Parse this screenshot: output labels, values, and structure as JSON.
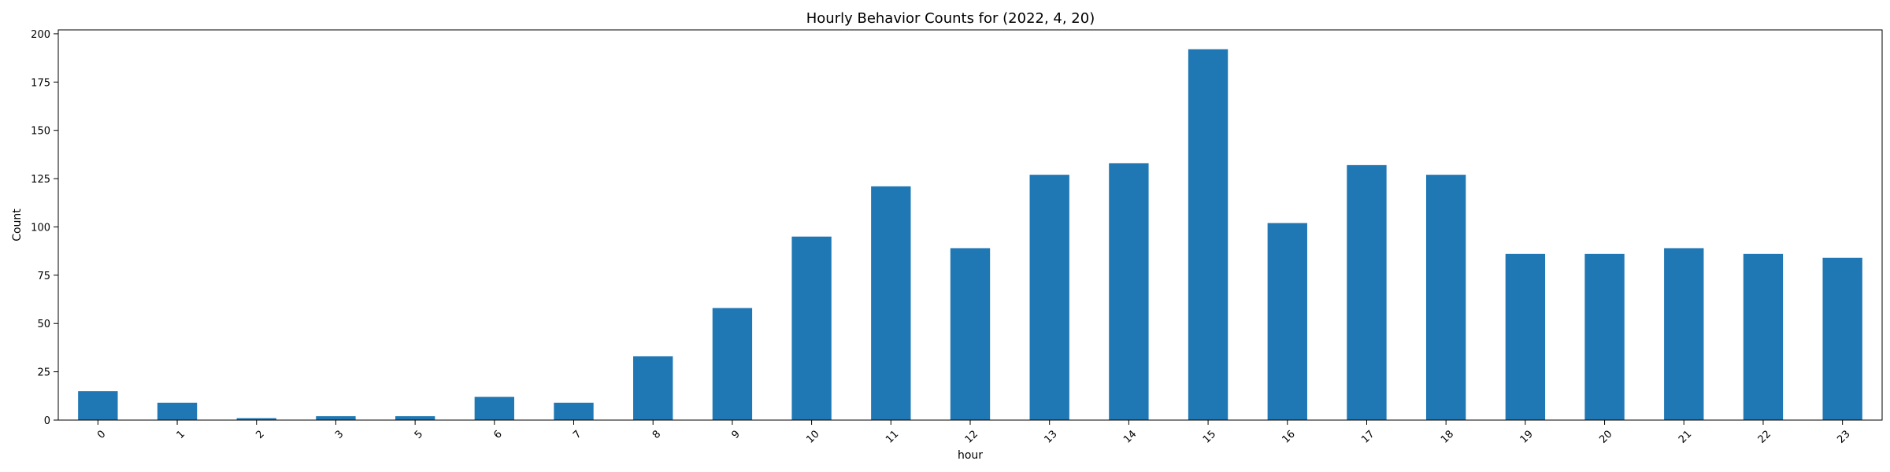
{
  "chart_data": {
    "type": "bar",
    "title": "Hourly Behavior Counts for (2022, 4, 20)",
    "xlabel": "hour",
    "ylabel": "Count",
    "categories": [
      "0",
      "1",
      "2",
      "3",
      "5",
      "6",
      "7",
      "8",
      "9",
      "10",
      "11",
      "12",
      "13",
      "14",
      "15",
      "16",
      "17",
      "18",
      "19",
      "20",
      "21",
      "22",
      "23"
    ],
    "values": [
      15,
      9,
      1,
      2,
      2,
      12,
      9,
      33,
      58,
      95,
      121,
      89,
      127,
      133,
      192,
      102,
      132,
      127,
      86,
      86,
      89,
      86,
      84
    ],
    "ylim": [
      0,
      202
    ],
    "yticks": [
      0,
      25,
      50,
      75,
      100,
      125,
      150,
      175,
      200
    ],
    "bar_color": "#1f77b4",
    "grid": false,
    "legend": "none"
  }
}
